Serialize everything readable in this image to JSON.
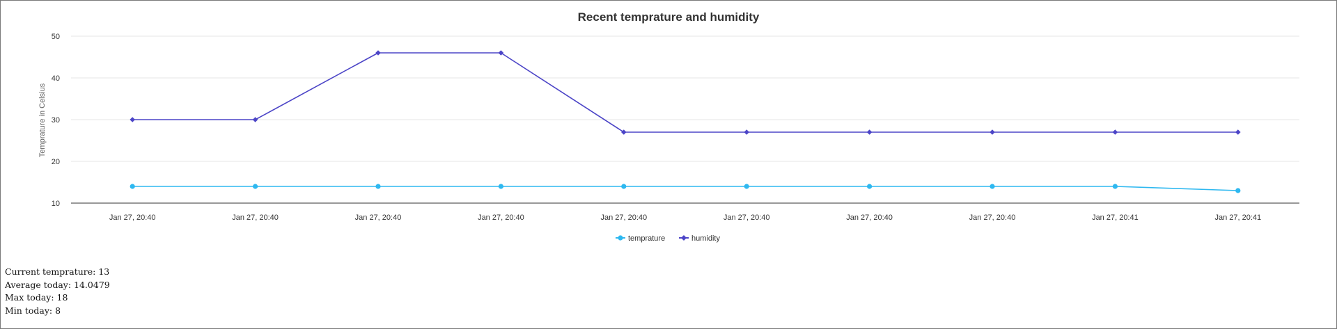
{
  "chart_data": {
    "type": "line",
    "title": "Recent temprature and humidity",
    "xlabel": "",
    "ylabel": "Temprature in Celsius",
    "ylim": [
      10,
      50
    ],
    "yticks": [
      10,
      20,
      30,
      40,
      50
    ],
    "categories": [
      "Jan 27, 20:40",
      "Jan 27, 20:40",
      "Jan 27, 20:40",
      "Jan 27, 20:40",
      "Jan 27, 20:40",
      "Jan 27, 20:40",
      "Jan 27, 20:40",
      "Jan 27, 20:40",
      "Jan 27, 20:41",
      "Jan 27, 20:41"
    ],
    "grid": true,
    "legend": "bottom-center",
    "series": [
      {
        "name": "temprature",
        "color": "#2eb8f0",
        "marker": "circle",
        "values": [
          14,
          14,
          14,
          14,
          14,
          14,
          14,
          14,
          14,
          13
        ]
      },
      {
        "name": "humidity",
        "color": "#4c45c7",
        "marker": "diamond",
        "values": [
          30,
          30,
          46,
          46,
          27,
          27,
          27,
          27,
          27,
          27
        ]
      }
    ]
  },
  "stats": {
    "current": "Current temprature: 13",
    "average": "Average today: 14.0479",
    "max": "Max today: 18",
    "min": "Min today: 8"
  }
}
